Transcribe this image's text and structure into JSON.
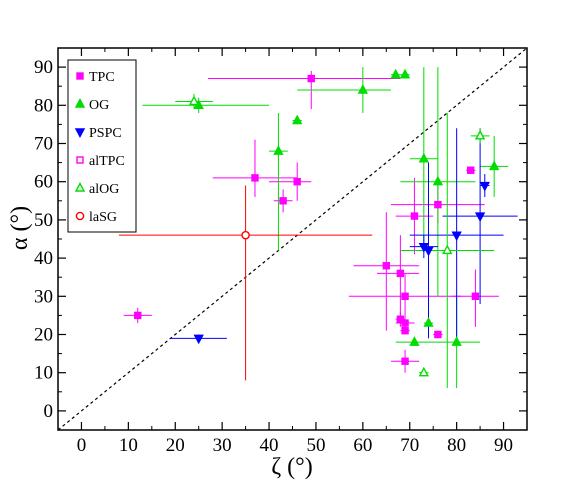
{
  "chart_data": {
    "type": "scatter",
    "xlabel": "ζ (°)",
    "ylabel": "α (°)",
    "xlim": [
      -5,
      95
    ],
    "ylim": [
      -5,
      95
    ],
    "xticks": [
      0,
      10,
      20,
      30,
      40,
      50,
      60,
      70,
      80,
      90
    ],
    "yticks": [
      0,
      10,
      20,
      30,
      40,
      50,
      60,
      70,
      80,
      90
    ],
    "tick_labels_x": [
      "0",
      "10",
      "20",
      "30",
      "40",
      "50",
      "60",
      "70",
      "80",
      "90"
    ],
    "tick_labels_y": [
      "0",
      "10",
      "20",
      "30",
      "40",
      "50",
      "60",
      "70",
      "80",
      "90"
    ],
    "grid": false,
    "legend_position": "top-left",
    "reference_line": {
      "style": "dashed",
      "color": "#000000",
      "from": [
        -5,
        -5
      ],
      "to": [
        95,
        95
      ]
    },
    "series": [
      {
        "name": "TPC",
        "marker": "square",
        "filled": true,
        "color": "#ff00ff",
        "points": [
          {
            "x": 12,
            "y": 25,
            "xerr": [
              3,
              3
            ],
            "yerr": [
              2,
              2
            ]
          },
          {
            "x": 37,
            "y": 61,
            "xerr": [
              9,
              9
            ],
            "yerr": [
              5,
              10
            ]
          },
          {
            "x": 43,
            "y": 55,
            "xerr": [
              2,
              2
            ],
            "yerr": [
              3,
              3
            ]
          },
          {
            "x": 46,
            "y": 60,
            "xerr": [
              6,
              3
            ],
            "yerr": [
              5,
              5
            ]
          },
          {
            "x": 49,
            "y": 87,
            "xerr": [
              22,
              19
            ],
            "yerr": [
              8,
              2
            ]
          },
          {
            "x": 65,
            "y": 38,
            "xerr": [
              7,
              7
            ],
            "yerr": [
              17,
              14
            ]
          },
          {
            "x": 68,
            "y": 36,
            "xerr": [
              5,
              4
            ],
            "yerr": [
              13,
              10
            ]
          },
          {
            "x": 68,
            "y": 24,
            "xerr": [
              1,
              1
            ],
            "yerr": [
              2,
              2
            ]
          },
          {
            "x": 69,
            "y": 30,
            "xerr": [
              12,
              12
            ],
            "yerr": [
              6,
              6
            ]
          },
          {
            "x": 69,
            "y": 23,
            "xerr": [
              2,
              2
            ],
            "yerr": [
              1,
              1
            ]
          },
          {
            "x": 69,
            "y": 21,
            "xerr": [
              1,
              1
            ],
            "yerr": [
              1,
              1
            ]
          },
          {
            "x": 69,
            "y": 13,
            "xerr": [
              3,
              3
            ],
            "yerr": [
              3,
              3
            ]
          },
          {
            "x": 71,
            "y": 51,
            "xerr": [
              4,
              4
            ],
            "yerr": [
              10,
              10
            ]
          },
          {
            "x": 76,
            "y": 54,
            "xerr": [
              10,
              10
            ],
            "yerr": [
              5,
              5
            ]
          },
          {
            "x": 76,
            "y": 20,
            "xerr": [
              1,
              1
            ],
            "yerr": [
              1,
              1
            ]
          },
          {
            "x": 83,
            "y": 63,
            "xerr": [
              1,
              1
            ],
            "yerr": [
              1,
              1
            ]
          },
          {
            "x": 84,
            "y": 30,
            "xerr": [
              5,
              5
            ],
            "yerr": [
              8,
              7
            ]
          }
        ]
      },
      {
        "name": "OG",
        "marker": "triangle-up",
        "filled": true,
        "color": "#00dd00",
        "points": [
          {
            "x": 25,
            "y": 80,
            "xerr": [
              12,
              15
            ],
            "yerr": [
              2,
              2
            ]
          },
          {
            "x": 42,
            "y": 68,
            "xerr": [
              2,
              2
            ],
            "yerr": [
              26,
              10
            ]
          },
          {
            "x": 46,
            "y": 76,
            "xerr": [
              1,
              1
            ],
            "yerr": [
              1,
              1
            ]
          },
          {
            "x": 60,
            "y": 84,
            "xerr": [
              14,
              6
            ],
            "yerr": [
              6,
              6
            ]
          },
          {
            "x": 67,
            "y": 88,
            "xerr": [
              1,
              1
            ],
            "yerr": [
              1,
              1
            ]
          },
          {
            "x": 69,
            "y": 88,
            "xerr": [
              1,
              1
            ],
            "yerr": [
              1,
              1
            ]
          },
          {
            "x": 71,
            "y": 18,
            "xerr": [
              4,
              4
            ],
            "yerr": [
              1,
              1
            ]
          },
          {
            "x": 73,
            "y": 66,
            "xerr": [
              3,
              3
            ],
            "yerr": [
              24,
              24
            ]
          },
          {
            "x": 74,
            "y": 23,
            "xerr": [
              1,
              1
            ],
            "yerr": [
              1,
              1
            ]
          },
          {
            "x": 76,
            "y": 60,
            "xerr": [
              8,
              8
            ],
            "yerr": [
              30,
              30
            ]
          },
          {
            "x": 80,
            "y": 18,
            "xerr": [
              5,
              5
            ],
            "yerr": [
              12,
              12
            ]
          },
          {
            "x": 88,
            "y": 64,
            "xerr": [
              3,
              3
            ],
            "yerr": [
              8,
              8
            ]
          }
        ]
      },
      {
        "name": "PSPC",
        "marker": "triangle-down",
        "filled": true,
        "color": "#0000ff",
        "points": [
          {
            "x": 25,
            "y": 19,
            "xerr": [
              6,
              6
            ],
            "yerr": [
              1,
              1
            ]
          },
          {
            "x": 73,
            "y": 43,
            "xerr": [
              3,
              3
            ],
            "yerr": [
              3,
              3
            ]
          },
          {
            "x": 74,
            "y": 42,
            "xerr": [
              2,
              2
            ],
            "yerr": [
              23,
              23
            ]
          },
          {
            "x": 80,
            "y": 46,
            "xerr": [
              10,
              10
            ],
            "yerr": [
              28,
              28
            ]
          },
          {
            "x": 85,
            "y": 51,
            "xerr": [
              8,
              8
            ],
            "yerr": [
              23,
              23
            ]
          },
          {
            "x": 86,
            "y": 59,
            "xerr": [
              1,
              1
            ],
            "yerr": [
              3,
              3
            ]
          }
        ]
      },
      {
        "name": "alTPC",
        "marker": "square",
        "filled": false,
        "color": "#ff00ff",
        "points": []
      },
      {
        "name": "alOG",
        "marker": "triangle-up",
        "filled": false,
        "color": "#00dd00",
        "points": [
          {
            "x": 24,
            "y": 81,
            "xerr": [
              4,
              4
            ],
            "yerr": [
              2,
              2
            ]
          },
          {
            "x": 73,
            "y": 10,
            "xerr": [
              1,
              1
            ],
            "yerr": [
              1,
              1
            ]
          },
          {
            "x": 78,
            "y": 42,
            "xerr": [
              10,
              10
            ],
            "yerr": [
              36,
              36
            ]
          },
          {
            "x": 85,
            "y": 72,
            "xerr": [
              2,
              2
            ],
            "yerr": [
              2,
              2
            ]
          }
        ]
      },
      {
        "name": "laSG",
        "marker": "circle",
        "filled": false,
        "color": "#ff0000",
        "points": [
          {
            "x": 35,
            "y": 46,
            "xerr": [
              27,
              27
            ],
            "yerr": [
              38,
              13
            ]
          }
        ]
      }
    ]
  }
}
